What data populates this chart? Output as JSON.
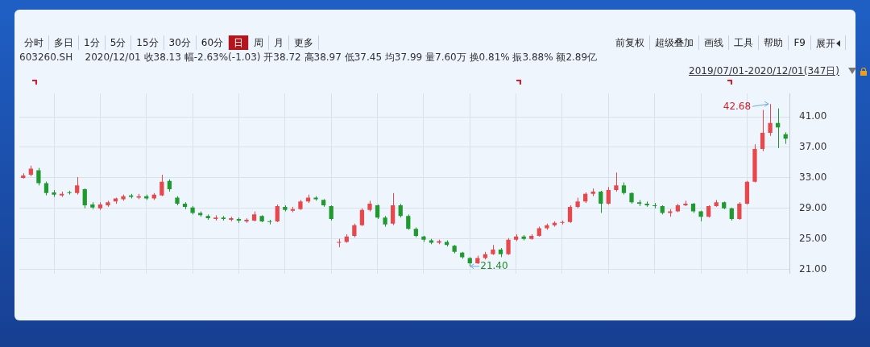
{
  "chart_data": {
    "type": "candlestick",
    "title": "603260.SH",
    "subtitle": "2020/12/01 收38.13 幅-2.63%(-1.03) 开38.72 高38.97 低37.45 均37.99 量7.60万 换0.81% 振3.88% 额2.89亿",
    "annotations": [
      "分时",
      "多日",
      "1分",
      "5分",
      "15分",
      "30分",
      "60分",
      "日",
      "周",
      "月",
      "更多",
      "前复权",
      "超级叠加",
      "画线",
      "工具",
      "帮助",
      "F9",
      "展开",
      "2019/07/01-2020/12/01(347日)",
      "42.68",
      "21.40"
    ],
    "categories": [
      null,
      null,
      null,
      null,
      null,
      null,
      null,
      null,
      null,
      null,
      null,
      null,
      null,
      null,
      null,
      null,
      null,
      null,
      null,
      null,
      null,
      null,
      null,
      null,
      null,
      null,
      null,
      null,
      null,
      null,
      null,
      null,
      null,
      null,
      null,
      null,
      null,
      null,
      null,
      null,
      null,
      null,
      null,
      null,
      null,
      null,
      null,
      null,
      null,
      null,
      null,
      null,
      null,
      null,
      null,
      null,
      null,
      null,
      null,
      null,
      null,
      null,
      null,
      null,
      null,
      null,
      null,
      null,
      null,
      null,
      null,
      null,
      null,
      null,
      null,
      null,
      null,
      null,
      null,
      null,
      null,
      null,
      null,
      null,
      null,
      null,
      null,
      null,
      null,
      null,
      null,
      null,
      null,
      null,
      null,
      null,
      null,
      null,
      null,
      null
    ],
    "ohlc": [
      [
        33.0,
        33.6,
        32.9,
        33.3
      ],
      [
        33.4,
        34.6,
        33.2,
        34.2
      ],
      [
        34.0,
        34.3,
        32.0,
        32.3
      ],
      [
        32.3,
        32.5,
        30.7,
        31.0
      ],
      [
        31.1,
        31.4,
        30.5,
        30.8
      ],
      [
        30.7,
        31.2,
        30.5,
        30.9
      ],
      [
        31.0,
        31.3,
        30.8,
        31.0
      ],
      [
        31.0,
        33.1,
        30.8,
        32.0
      ],
      [
        31.5,
        31.6,
        29.0,
        29.4
      ],
      [
        29.5,
        29.8,
        28.9,
        29.1
      ],
      [
        29.0,
        29.8,
        28.8,
        29.5
      ],
      [
        29.4,
        30.0,
        29.2,
        29.8
      ],
      [
        29.9,
        30.4,
        29.6,
        30.3
      ],
      [
        30.2,
        30.8,
        30.0,
        30.6
      ],
      [
        30.7,
        30.9,
        30.3,
        30.5
      ],
      [
        30.4,
        30.9,
        30.2,
        30.6
      ],
      [
        30.6,
        30.8,
        30.1,
        30.3
      ],
      [
        30.3,
        31.0,
        30.1,
        30.8
      ],
      [
        30.7,
        33.4,
        30.6,
        32.5
      ],
      [
        32.6,
        32.8,
        31.2,
        31.5
      ],
      [
        30.4,
        30.6,
        29.4,
        29.6
      ],
      [
        29.6,
        29.8,
        28.9,
        29.2
      ],
      [
        29.1,
        29.3,
        28.2,
        28.4
      ],
      [
        28.4,
        28.6,
        27.9,
        28.1
      ],
      [
        28.0,
        28.2,
        27.5,
        27.7
      ],
      [
        27.6,
        28.1,
        27.4,
        27.8
      ],
      [
        27.8,
        28.0,
        27.4,
        27.6
      ],
      [
        27.5,
        27.9,
        27.3,
        27.7
      ],
      [
        27.6,
        27.8,
        27.1,
        27.4
      ],
      [
        27.3,
        27.7,
        27.1,
        27.5
      ],
      [
        27.4,
        28.6,
        27.3,
        28.2
      ],
      [
        28.0,
        28.1,
        27.2,
        27.3
      ],
      [
        27.2,
        27.5,
        26.9,
        27.2
      ],
      [
        27.3,
        29.5,
        27.2,
        29.3
      ],
      [
        29.2,
        29.4,
        28.6,
        28.8
      ],
      [
        28.7,
        29.2,
        28.5,
        28.9
      ],
      [
        28.9,
        30.1,
        28.8,
        29.9
      ],
      [
        29.9,
        30.8,
        29.7,
        30.4
      ],
      [
        30.4,
        30.6,
        30.0,
        30.2
      ],
      [
        30.1,
        30.2,
        29.2,
        29.4
      ],
      [
        29.3,
        29.4,
        27.4,
        27.6
      ],
      [
        24.5,
        25.0,
        23.9,
        24.6
      ],
      [
        24.6,
        25.6,
        24.5,
        25.3
      ],
      [
        25.4,
        27.0,
        25.2,
        26.8
      ],
      [
        26.8,
        29.0,
        26.7,
        28.8
      ],
      [
        28.8,
        30.0,
        28.6,
        29.6
      ],
      [
        29.4,
        29.5,
        27.6,
        27.8
      ],
      [
        27.8,
        28.0,
        26.6,
        26.9
      ],
      [
        27.0,
        31.0,
        26.8,
        29.4
      ],
      [
        29.4,
        29.6,
        27.8,
        28.0
      ],
      [
        28.0,
        28.2,
        26.2,
        26.3
      ],
      [
        26.3,
        26.5,
        25.2,
        25.4
      ],
      [
        25.3,
        25.4,
        24.6,
        24.9
      ],
      [
        24.8,
        25.0,
        24.3,
        24.5
      ],
      [
        24.5,
        24.9,
        24.3,
        24.7
      ],
      [
        24.6,
        24.8,
        24.0,
        24.2
      ],
      [
        24.1,
        24.2,
        23.1,
        23.3
      ],
      [
        23.2,
        23.3,
        22.4,
        22.6
      ],
      [
        22.5,
        22.6,
        21.4,
        21.8
      ],
      [
        21.8,
        22.8,
        21.7,
        22.5
      ],
      [
        22.5,
        23.3,
        22.3,
        23.0
      ],
      [
        23.0,
        24.2,
        22.9,
        23.6
      ],
      [
        23.6,
        23.8,
        22.6,
        23.0
      ],
      [
        23.0,
        25.1,
        22.9,
        24.9
      ],
      [
        24.9,
        25.6,
        24.7,
        25.3
      ],
      [
        25.3,
        25.5,
        24.8,
        25.0
      ],
      [
        25.0,
        25.6,
        24.9,
        25.4
      ],
      [
        25.4,
        26.6,
        25.3,
        26.4
      ],
      [
        26.4,
        27.0,
        26.2,
        26.8
      ],
      [
        26.8,
        27.3,
        26.6,
        27.1
      ],
      [
        27.1,
        27.4,
        26.9,
        27.2
      ],
      [
        27.2,
        29.4,
        27.1,
        29.2
      ],
      [
        29.2,
        30.4,
        29.0,
        29.9
      ],
      [
        29.9,
        31.1,
        29.7,
        30.9
      ],
      [
        30.9,
        31.6,
        30.6,
        31.2
      ],
      [
        31.2,
        31.3,
        28.4,
        29.6
      ],
      [
        29.6,
        31.8,
        29.5,
        31.4
      ],
      [
        31.4,
        33.7,
        31.2,
        32.0
      ],
      [
        32.0,
        32.4,
        30.8,
        31.0
      ],
      [
        31.0,
        31.1,
        29.6,
        29.8
      ],
      [
        29.8,
        30.1,
        29.3,
        29.6
      ],
      [
        29.6,
        29.9,
        29.2,
        29.4
      ],
      [
        29.4,
        29.7,
        29.0,
        29.3
      ],
      [
        29.3,
        29.4,
        28.2,
        28.4
      ],
      [
        28.4,
        28.9,
        27.9,
        28.6
      ],
      [
        28.6,
        29.6,
        28.5,
        29.4
      ],
      [
        29.4,
        30.0,
        29.3,
        29.6
      ],
      [
        29.6,
        29.7,
        28.4,
        28.6
      ],
      [
        28.6,
        28.7,
        27.3,
        27.9
      ],
      [
        27.9,
        29.4,
        27.8,
        29.3
      ],
      [
        29.3,
        30.1,
        29.2,
        29.8
      ],
      [
        29.8,
        29.9,
        28.9,
        29.0
      ],
      [
        29.0,
        29.1,
        27.4,
        27.6
      ],
      [
        27.6,
        29.8,
        27.5,
        29.6
      ],
      [
        29.6,
        32.6,
        29.5,
        32.5
      ],
      [
        32.5,
        37.4,
        32.4,
        36.8
      ],
      [
        36.8,
        41.9,
        36.5,
        38.9
      ],
      [
        38.9,
        42.68,
        38.5,
        40.2
      ],
      [
        40.2,
        42.1,
        36.9,
        39.6
      ],
      [
        38.72,
        38.97,
        37.45,
        38.13
      ]
    ],
    "colors": [
      "#e8474b",
      "#e8474b",
      "#1f9a2e",
      "#1f9a2e",
      "#1f9a2e",
      "#e8474b",
      "#1f9a2e",
      "#e8474b",
      "#1f9a2e",
      "#1f9a2e",
      "#e8474b",
      "#e8474b",
      "#e8474b",
      "#e8474b",
      "#1f9a2e",
      "#e8474b",
      "#1f9a2e",
      "#e8474b",
      "#e8474b",
      "#1f9a2e",
      "#1f9a2e",
      "#1f9a2e",
      "#1f9a2e",
      "#1f9a2e",
      "#1f9a2e",
      "#e8474b",
      "#1f9a2e",
      "#e8474b",
      "#1f9a2e",
      "#e8474b",
      "#e8474b",
      "#1f9a2e",
      "#1f9a2e",
      "#e8474b",
      "#1f9a2e",
      "#e8474b",
      "#e8474b",
      "#e8474b",
      "#1f9a2e",
      "#1f9a2e",
      "#1f9a2e",
      "#e8474b",
      "#e8474b",
      "#e8474b",
      "#e8474b",
      "#e8474b",
      "#1f9a2e",
      "#1f9a2e",
      "#e8474b",
      "#1f9a2e",
      "#1f9a2e",
      "#1f9a2e",
      "#1f9a2e",
      "#1f9a2e",
      "#e8474b",
      "#1f9a2e",
      "#1f9a2e",
      "#1f9a2e",
      "#1f9a2e",
      "#e8474b",
      "#e8474b",
      "#e8474b",
      "#1f9a2e",
      "#e8474b",
      "#e8474b",
      "#1f9a2e",
      "#e8474b",
      "#e8474b",
      "#e8474b",
      "#e8474b",
      "#e8474b",
      "#e8474b",
      "#e8474b",
      "#e8474b",
      "#e8474b",
      "#1f9a2e",
      "#e8474b",
      "#e8474b",
      "#1f9a2e",
      "#1f9a2e",
      "#1f9a2e",
      "#1f9a2e",
      "#1f9a2e",
      "#1f9a2e",
      "#e8474b",
      "#e8474b",
      "#e8474b",
      "#1f9a2e",
      "#1f9a2e",
      "#e8474b",
      "#e8474b",
      "#1f9a2e",
      "#1f9a2e",
      "#e8474b",
      "#e8474b",
      "#e8474b",
      "#e8474b",
      "#e8474b",
      "#1f9a2e",
      "#1f9a2e"
    ],
    "ylim": [
      20.45,
      44.05
    ],
    "yticks": [
      {
        "value": 21,
        "label": "21.00"
      },
      {
        "value": 25,
        "label": "25.00"
      },
      {
        "value": 29,
        "label": "29.00"
      },
      {
        "value": 33,
        "label": "33.00"
      },
      {
        "value": 37,
        "label": "37.00"
      },
      {
        "value": 41,
        "label": "41.00"
      }
    ],
    "grid": true,
    "tick_labels": "y"
  }
}
